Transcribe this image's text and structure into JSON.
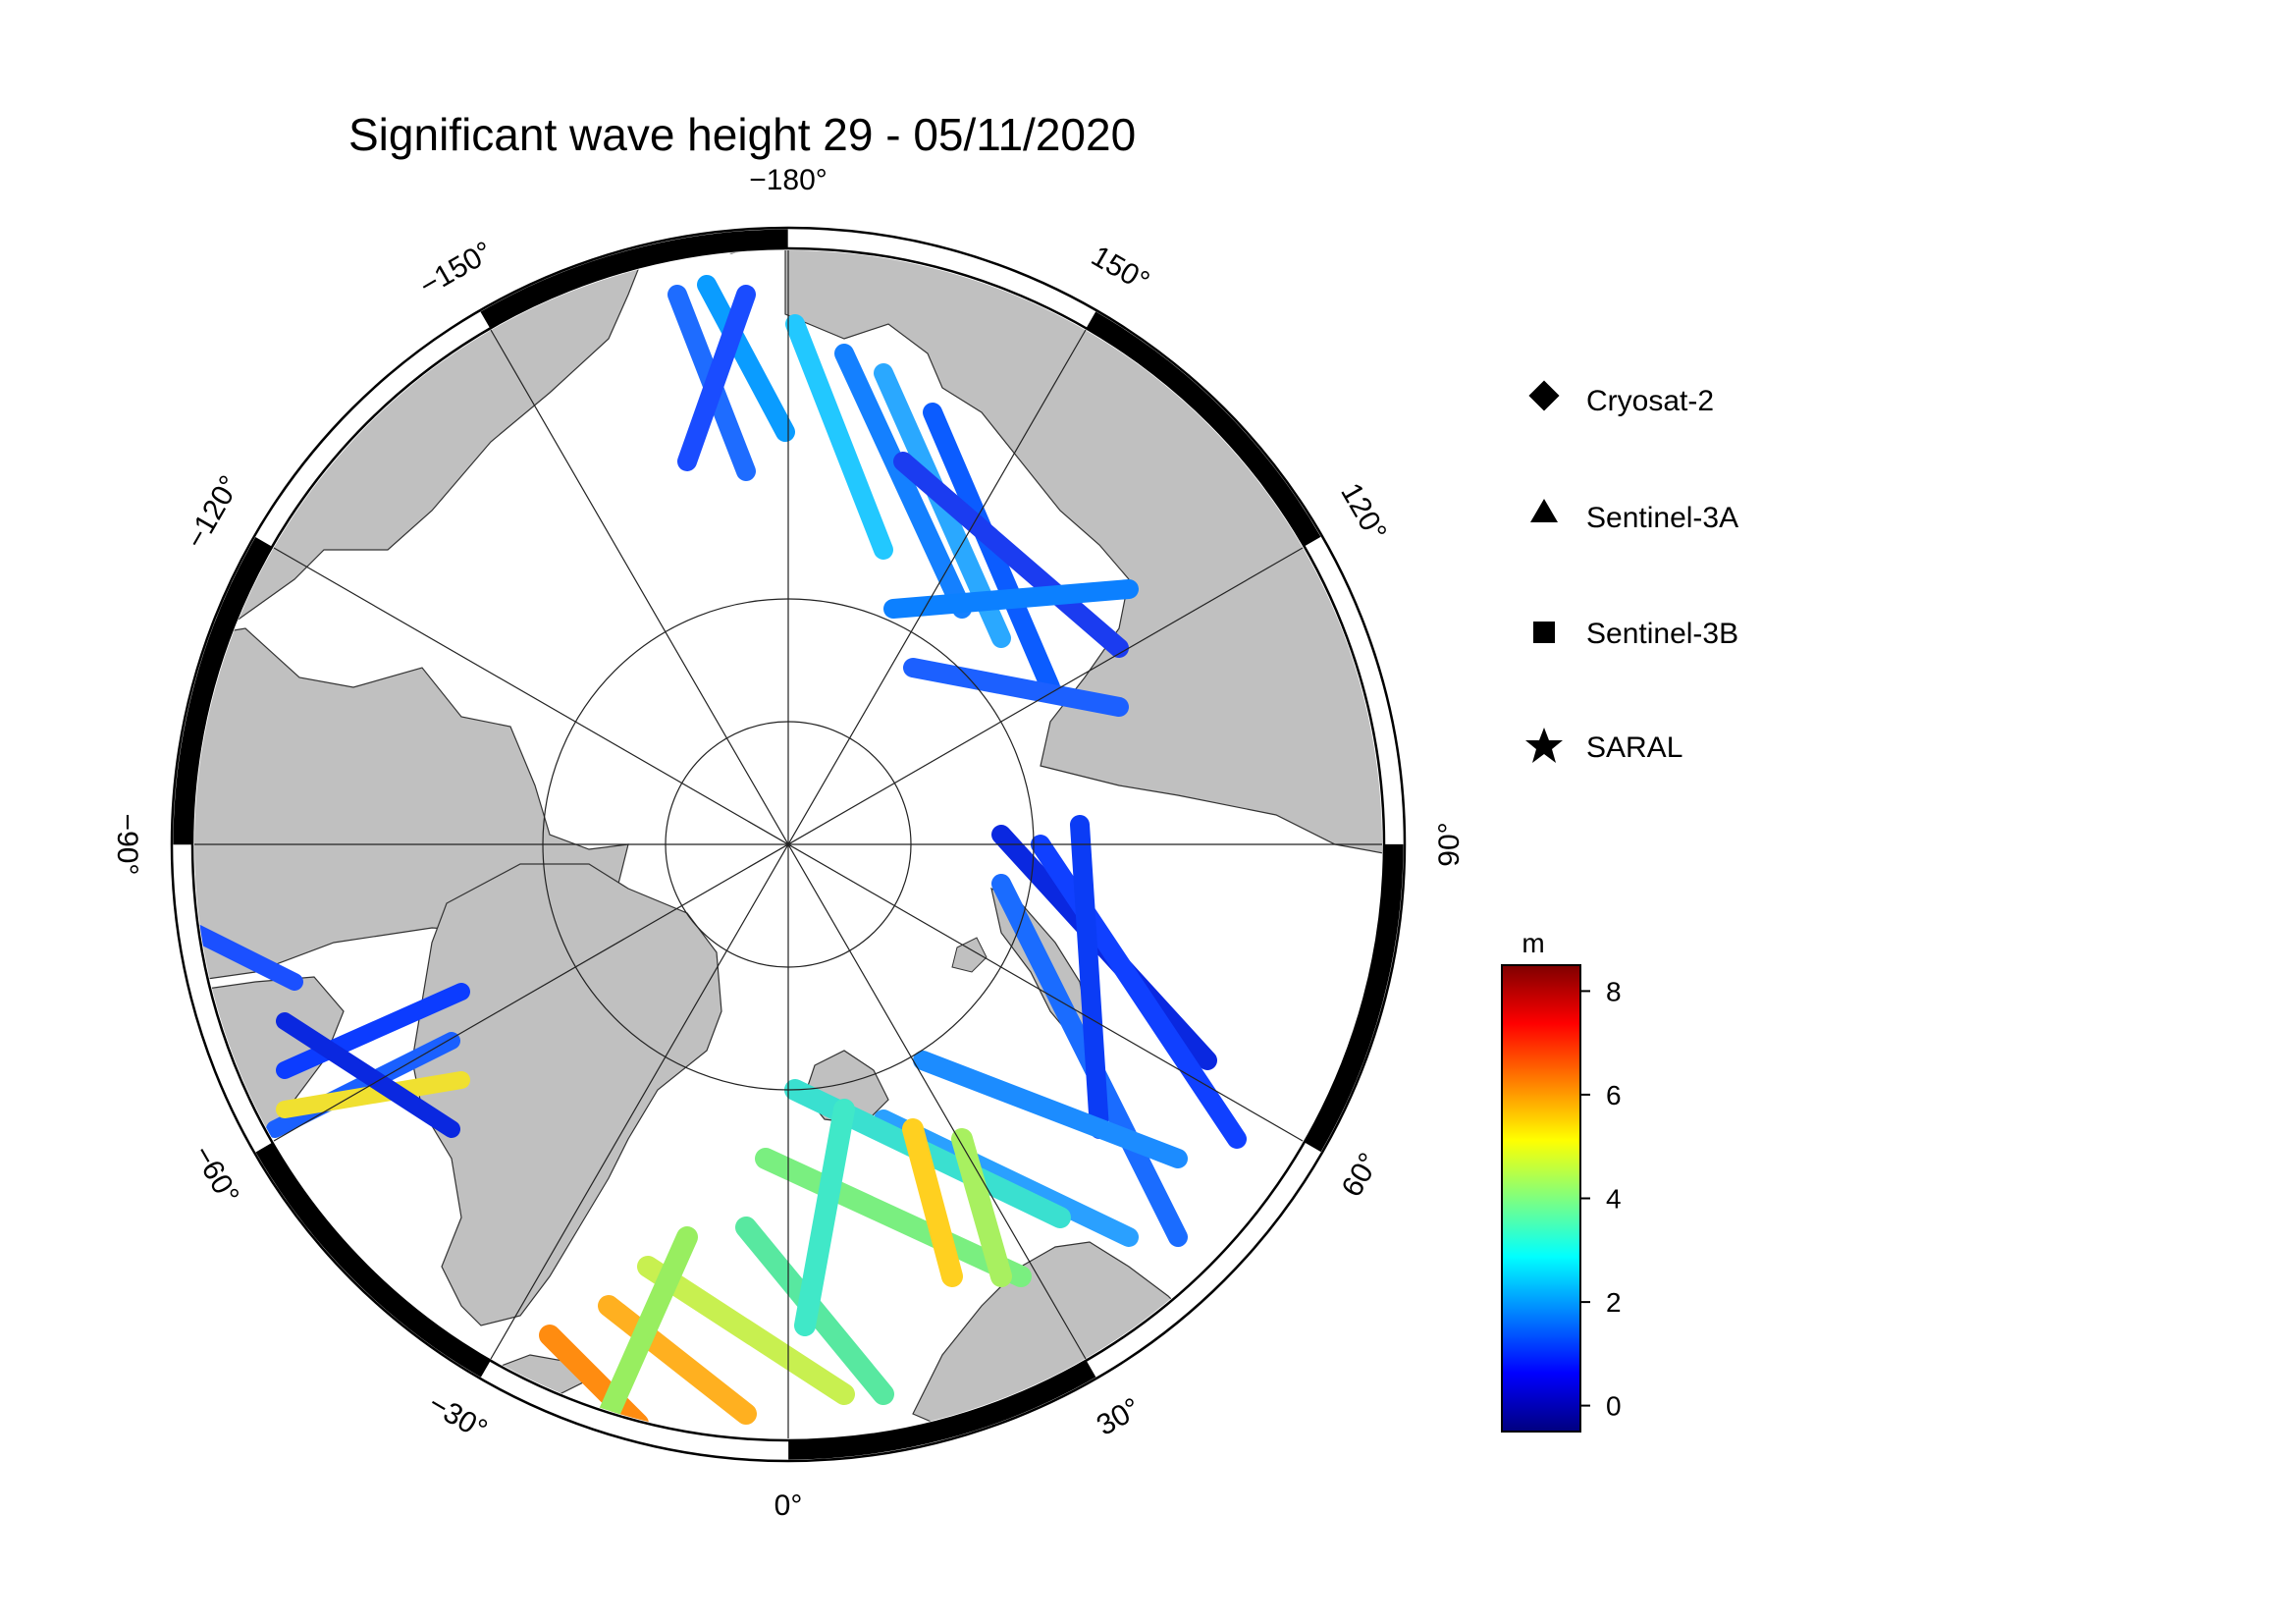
{
  "title": "Significant wave height 29 - 05/11/2020",
  "map": {
    "projection": "north-polar-stereographic",
    "longitude_labels": [
      {
        "lon": -180,
        "text": "−180°"
      },
      {
        "lon": 150,
        "text": "150°"
      },
      {
        "lon": 120,
        "text": "120°"
      },
      {
        "lon": 90,
        "text": "90°"
      },
      {
        "lon": 60,
        "text": "60°"
      },
      {
        "lon": 30,
        "text": "30°"
      },
      {
        "lon": 0,
        "text": "0°"
      },
      {
        "lon": -30,
        "text": "−30°"
      },
      {
        "lon": -60,
        "text": "−60°"
      },
      {
        "lon": -90,
        "text": "−90°"
      },
      {
        "lon": -120,
        "text": "−120°"
      },
      {
        "lon": -150,
        "text": "−150°"
      }
    ],
    "colors": {
      "land": "#c0c0c0",
      "sea_ice": "#ffffff",
      "coast": "#333333",
      "grid": "#222222"
    }
  },
  "legend": {
    "items": [
      {
        "symbol": "diamond",
        "label": "Cryosat-2"
      },
      {
        "symbol": "triangle",
        "label": "Sentinel-3A"
      },
      {
        "symbol": "square",
        "label": "Sentinel-3B"
      },
      {
        "symbol": "star",
        "label": "SARAL"
      }
    ]
  },
  "colorbar": {
    "unit": "m",
    "min": -0.5,
    "max": 8.5,
    "ticks": [
      {
        "value": 0,
        "label": "0"
      },
      {
        "value": 2,
        "label": "2"
      },
      {
        "value": 4,
        "label": "4"
      },
      {
        "value": 6,
        "label": "6"
      },
      {
        "value": 8,
        "label": "8"
      }
    ],
    "colormap": [
      "#00007f",
      "#0000ff",
      "#007fff",
      "#00ffff",
      "#7fff7f",
      "#ffff00",
      "#ff7f00",
      "#ff0000",
      "#7f0000"
    ]
  }
}
